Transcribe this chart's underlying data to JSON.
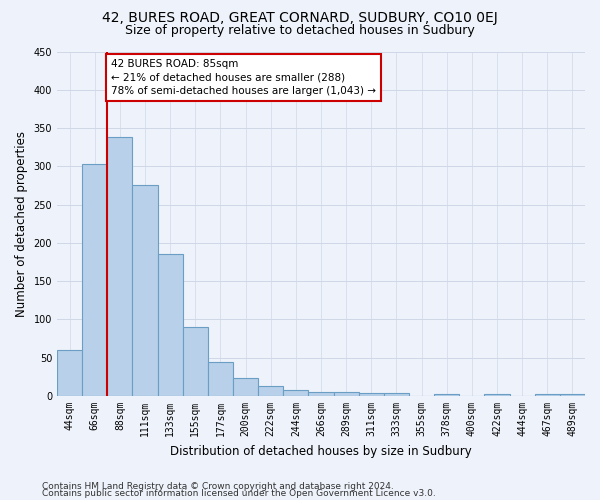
{
  "title1": "42, BURES ROAD, GREAT CORNARD, SUDBURY, CO10 0EJ",
  "title2": "Size of property relative to detached houses in Sudbury",
  "xlabel": "Distribution of detached houses by size in Sudbury",
  "ylabel": "Number of detached properties",
  "bar_labels": [
    "44sqm",
    "66sqm",
    "88sqm",
    "111sqm",
    "133sqm",
    "155sqm",
    "177sqm",
    "200sqm",
    "222sqm",
    "244sqm",
    "266sqm",
    "289sqm",
    "311sqm",
    "333sqm",
    "355sqm",
    "378sqm",
    "400sqm",
    "422sqm",
    "444sqm",
    "467sqm",
    "489sqm"
  ],
  "bar_values": [
    60,
    303,
    338,
    275,
    185,
    90,
    45,
    23,
    13,
    8,
    5,
    5,
    4,
    4,
    0,
    3,
    0,
    3,
    0,
    3,
    3
  ],
  "bar_color": "#b8d0ea",
  "bar_edge_color": "#6a9ec5",
  "red_line_index": 2,
  "annotation_text": "42 BURES ROAD: 85sqm\n← 21% of detached houses are smaller (288)\n78% of semi-detached houses are larger (1,043) →",
  "annotation_box_color": "#ffffff",
  "annotation_border_color": "#cc0000",
  "ylim": [
    0,
    450
  ],
  "yticks": [
    0,
    50,
    100,
    150,
    200,
    250,
    300,
    350,
    400,
    450
  ],
  "background_color": "#eef2fa",
  "grid_color": "#d0d8e8",
  "footer1": "Contains HM Land Registry data © Crown copyright and database right 2024.",
  "footer2": "Contains public sector information licensed under the Open Government Licence v3.0.",
  "title1_fontsize": 10,
  "title2_fontsize": 9,
  "xlabel_fontsize": 8.5,
  "ylabel_fontsize": 8.5,
  "tick_fontsize": 7,
  "footer_fontsize": 6.5,
  "annot_fontsize": 7.5
}
